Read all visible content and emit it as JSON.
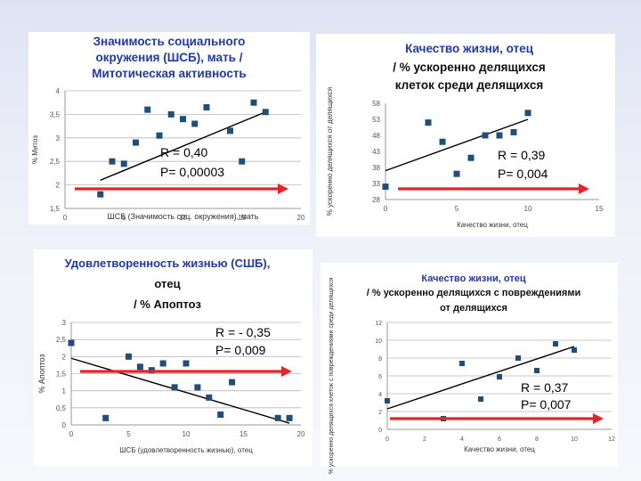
{
  "colors": {
    "marker": "#1f4e79",
    "trend": "#000000",
    "arrow": "#e0262b",
    "title_blue": "#1f3aa0",
    "title_black": "#111111",
    "grid": "#b8b8b8"
  },
  "chart_data": [
    {
      "type": "scatter",
      "title_lines": [
        "Значимость социального",
        "окружения (ШСБ), мать /",
        "Митотическая активность"
      ],
      "xlabel": "ШСБ (Значимость соц. окружения), мать",
      "ylabel": "% Митоз",
      "xlim": [
        0,
        20
      ],
      "ylim": [
        1.5,
        4
      ],
      "xticks": [
        "0",
        "5",
        "10",
        "15",
        "20"
      ],
      "yticks": [
        "1,5",
        "2",
        "2,5",
        "3",
        "3,5",
        "4"
      ],
      "grid": true,
      "x": [
        3,
        4,
        5,
        6,
        7,
        8,
        9,
        10,
        11,
        12,
        14,
        15,
        16,
        17
      ],
      "y": [
        1.8,
        2.5,
        2.45,
        2.9,
        3.6,
        3.05,
        3.5,
        3.4,
        3.3,
        3.65,
        3.15,
        2.5,
        3.75,
        3.55
      ],
      "trend": {
        "x1": 3,
        "y1": 2.1,
        "x2": 17,
        "y2": 3.55
      },
      "stat_r": "R = 0,40",
      "stat_p": "P= 0,00003"
    },
    {
      "type": "scatter",
      "title_lines": [
        "Качество жизни, отец",
        "/ % ускоренно делящихся",
        "клеток среди делящихся"
      ],
      "xlabel": "Качество жизни, отец",
      "ylabel": "% ускоренно делящихся от делящихся",
      "xlim": [
        0,
        15
      ],
      "ylim": [
        28,
        58
      ],
      "xticks": [
        "0",
        "5",
        "10",
        "15"
      ],
      "yticks": [
        "28",
        "33",
        "38",
        "43",
        "48",
        "53",
        "58"
      ],
      "grid": false,
      "x": [
        0,
        3,
        4,
        5,
        6,
        7,
        8,
        9,
        10
      ],
      "y": [
        32,
        52,
        46,
        36,
        41,
        48,
        48,
        49,
        55
      ],
      "trend": {
        "x1": 0,
        "y1": 37,
        "x2": 10,
        "y2": 53
      },
      "stat_r": "R = 0,39",
      "stat_p": "P= 0,004"
    },
    {
      "type": "scatter",
      "title_lines": [
        "Удовлетворенность жизнью (СШБ),",
        "отец",
        "/ % Апоптоз"
      ],
      "xlabel": "ШСБ (удовлетворенность жизнью), отец",
      "ylabel": "% Апоптоз",
      "xlim": [
        0,
        20
      ],
      "ylim": [
        0,
        3
      ],
      "xticks": [
        "0",
        "5",
        "10",
        "15",
        "20"
      ],
      "yticks": [
        "0",
        "0,5",
        "1",
        "1,5",
        "2",
        "2,5",
        "3"
      ],
      "grid": true,
      "x": [
        0,
        3,
        5,
        6,
        7,
        8,
        9,
        10,
        11,
        12,
        13,
        14,
        18,
        19
      ],
      "y": [
        2.4,
        0.2,
        2.0,
        1.7,
        1.6,
        1.8,
        1.1,
        1.8,
        1.1,
        0.8,
        0.3,
        1.25,
        0.2,
        0.2
      ],
      "trend": {
        "x1": 0,
        "y1": 1.95,
        "x2": 19,
        "y2": 0.05
      },
      "stat_r": "R = - 0,35",
      "stat_p": "P= 0,009"
    },
    {
      "type": "scatter",
      "title_lines": [
        "Качество жизни, отец",
        "/ % ускоренно делящихся с повреждениями",
        "от делящихся"
      ],
      "xlabel": "Качество жизни, отец",
      "ylabel": "% ускоренно делящихся клеток с повреждениями среди делящихся",
      "xlim": [
        0,
        12
      ],
      "ylim": [
        0,
        12
      ],
      "xticks": [
        "0",
        "2",
        "4",
        "6",
        "8",
        "10",
        "12"
      ],
      "yticks": [
        "0",
        "2",
        "4",
        "6",
        "8",
        "10",
        "12"
      ],
      "grid": true,
      "x": [
        0,
        3,
        4,
        5,
        6,
        7,
        8,
        9,
        10
      ],
      "y": [
        3.2,
        1.2,
        7.4,
        3.4,
        5.9,
        8.0,
        6.6,
        9.6,
        8.9
      ],
      "trend": {
        "x1": 0,
        "y1": 2.3,
        "x2": 10,
        "y2": 9.3
      },
      "stat_r": "R =  0,37",
      "stat_p": "P= 0,007"
    }
  ]
}
